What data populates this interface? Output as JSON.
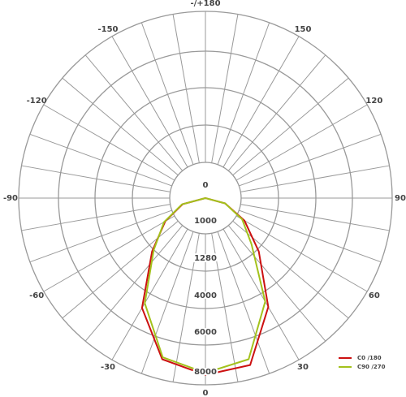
{
  "chart_data": {
    "type": "polar",
    "x": [
      -90,
      -75,
      -60,
      -45,
      -30,
      -15,
      0,
      15,
      30,
      45,
      60,
      75,
      90
    ],
    "series": [
      {
        "name": "C0 /180",
        "color": "#cc1111",
        "values": [
          0,
          660,
          1080,
          1450,
          4900,
          7000,
          7500,
          7300,
          4840,
          1450,
          1070,
          570,
          0
        ]
      },
      {
        "name": "C90 /270",
        "color": "#a3c21c",
        "values": [
          0,
          680,
          1090,
          1280,
          4600,
          6900,
          7400,
          7000,
          4500,
          1220,
          1050,
          570,
          0
        ]
      }
    ],
    "rlim": [
      0,
      8000
    ],
    "rticks": [
      0,
      1000,
      1280,
      4000,
      6000,
      8000
    ],
    "xticks": [
      {
        "value": 180,
        "label": "-/+180"
      },
      150,
      120,
      90,
      60,
      30,
      0,
      -30,
      -60,
      -90,
      -120,
      -150
    ]
  }
}
